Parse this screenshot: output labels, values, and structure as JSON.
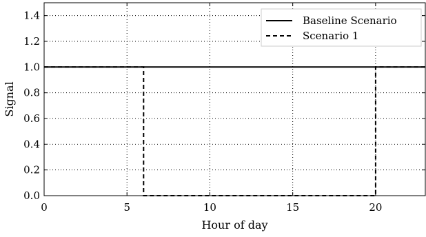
{
  "chart_data": {
    "type": "line",
    "xlabel": "Hour of day",
    "ylabel": "Signal",
    "xlim": [
      0,
      23
    ],
    "ylim": [
      0,
      1.5
    ],
    "x_ticks": [
      0,
      5,
      10,
      15,
      20
    ],
    "y_ticks": [
      0.0,
      0.2,
      0.4,
      0.6,
      0.8,
      1.0,
      1.2,
      1.4
    ],
    "x_tick_labels": [
      "0",
      "5",
      "10",
      "15",
      "20"
    ],
    "y_tick_labels": [
      "0.0",
      "0.2",
      "0.4",
      "0.6",
      "0.8",
      "1.0",
      "1.2",
      "1.4"
    ],
    "grid": true,
    "legend_position": "top-right",
    "series": [
      {
        "name": "Baseline Scenario",
        "style": "solid",
        "color": "#000000",
        "x": [
          0,
          23
        ],
        "y": [
          1.0,
          1.0
        ]
      },
      {
        "name": "Scenario 1",
        "style": "dashed",
        "color": "#000000",
        "x": [
          0,
          6,
          6,
          20,
          20,
          23
        ],
        "y": [
          1.0,
          1.0,
          0.0,
          0.0,
          1.0,
          1.0
        ]
      }
    ]
  }
}
